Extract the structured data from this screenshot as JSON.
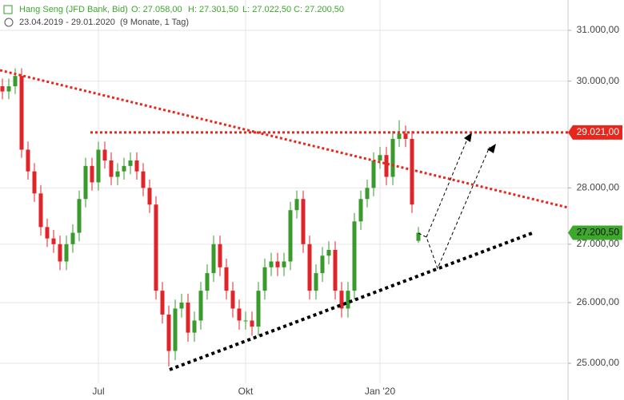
{
  "header": {
    "instrument": "Hang Seng (JFD Bank, Bid)",
    "open": "O: 27.058,00",
    "high": "H: 27.301,50",
    "low": "L: 27.022,50",
    "close": "C: 27.200,50",
    "range": "23.04.2019 - 29.01.2020",
    "duration": "(9 Monate, 1 Tag)"
  },
  "chart_data": {
    "type": "candlestick",
    "log_y": true,
    "grid": true,
    "up_color": "#3a9a2e",
    "down_color": "#e0252a",
    "categories": [
      null,
      null,
      null,
      null,
      null,
      null,
      null,
      null,
      null,
      null,
      null,
      null,
      null,
      null,
      null,
      "Jul",
      null,
      null,
      null,
      null,
      null,
      null,
      null,
      null,
      null,
      null,
      null,
      null,
      null,
      null,
      null,
      null,
      null,
      null,
      null,
      null,
      null,
      null,
      "Okt",
      null,
      null,
      null,
      null,
      null,
      null,
      null,
      null,
      null,
      null,
      null,
      null,
      null,
      null,
      null,
      null,
      null,
      null,
      null,
      null,
      "Jan '20",
      null,
      null,
      null,
      null,
      null,
      null
    ],
    "open": [
      29900,
      29800,
      29900,
      30100,
      28700,
      28300,
      27900,
      27300,
      27100,
      27000,
      26700,
      27000,
      27200,
      27800,
      28400,
      28100,
      28700,
      28500,
      28200,
      28300,
      28400,
      28500,
      28300,
      28000,
      27700,
      26200,
      25800,
      25200,
      25900,
      26000,
      25500,
      25700,
      26200,
      26500,
      27000,
      26600,
      26200,
      25900,
      25700,
      25700,
      25600,
      26200,
      26600,
      26700,
      26600,
      26700,
      27600,
      27800,
      27000,
      26200,
      26500,
      26800,
      26900,
      26200,
      25900,
      26200,
      27400,
      27800,
      28000,
      28500,
      28600,
      28200,
      28900,
      29000,
      28900,
      27058
    ],
    "high": [
      30050,
      30050,
      30250,
      30250,
      28850,
      28450,
      28050,
      27450,
      27250,
      27150,
      27150,
      27350,
      27950,
      28550,
      28550,
      28850,
      28850,
      28650,
      28450,
      28550,
      28650,
      28650,
      28450,
      28150,
      27850,
      26350,
      25950,
      26050,
      26150,
      26150,
      25850,
      26350,
      26650,
      27150,
      27150,
      26750,
      26350,
      26050,
      25850,
      25850,
      26350,
      26750,
      26850,
      26850,
      26850,
      27750,
      27950,
      27950,
      27150,
      26650,
      26950,
      27050,
      27050,
      26350,
      26350,
      27550,
      27950,
      28150,
      28650,
      28750,
      28750,
      29050,
      29250,
      29150,
      29050,
      27301.5
    ],
    "low": [
      29650,
      29650,
      29750,
      28550,
      28150,
      27750,
      27150,
      26950,
      26850,
      26550,
      26550,
      26850,
      27050,
      27650,
      27950,
      27950,
      28350,
      28050,
      28050,
      28150,
      28250,
      28150,
      27850,
      27550,
      26050,
      25650,
      24950,
      25050,
      25750,
      25350,
      25350,
      25550,
      26050,
      26350,
      26450,
      26050,
      25750,
      25550,
      25550,
      25450,
      25450,
      26050,
      26450,
      26450,
      26450,
      26550,
      27450,
      26850,
      26050,
      26050,
      26350,
      26650,
      26050,
      25750,
      25750,
      26050,
      27250,
      27650,
      27850,
      28350,
      28050,
      28050,
      28750,
      28750,
      27550,
      27022.5
    ],
    "close": [
      29800,
      29900,
      30100,
      28700,
      28300,
      27900,
      27300,
      27100,
      27000,
      26700,
      27000,
      27200,
      27800,
      28400,
      28100,
      28700,
      28500,
      28200,
      28300,
      28400,
      28500,
      28300,
      28000,
      27700,
      26200,
      25800,
      25200,
      25900,
      26000,
      25500,
      25700,
      26200,
      26500,
      27000,
      26600,
      26200,
      25900,
      25700,
      25700,
      25600,
      26200,
      26600,
      26700,
      26600,
      26700,
      27600,
      27800,
      27000,
      26200,
      26500,
      26800,
      26900,
      26200,
      25900,
      26200,
      27400,
      27800,
      28000,
      28500,
      28600,
      28200,
      28900,
      29000,
      28900,
      27700,
      27200.5
    ],
    "ylim": [
      24414,
      31614
    ],
    "yticks": [
      {
        "value": 25000,
        "label": "25.000,00"
      },
      {
        "value": 26000,
        "label": "26.000,00"
      },
      {
        "value": 27000,
        "label": "27.000,00"
      },
      {
        "value": 28000,
        "label": "28.000,00"
      },
      {
        "value": 30000,
        "label": "30.000,00"
      },
      {
        "value": 31000,
        "label": "31.000,00"
      }
    ],
    "resistance": {
      "value": 29021,
      "label": "29.021,00",
      "color": "#e8261b"
    },
    "last_price": {
      "value": 27200.5,
      "label": "27.200,50",
      "color": "#3da82c"
    }
  }
}
